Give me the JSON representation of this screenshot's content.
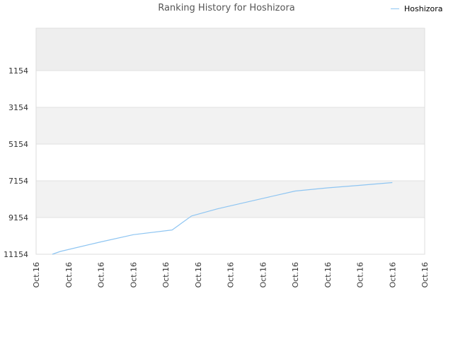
{
  "chart_data": {
    "type": "line",
    "title": "Ranking History for Hoshizora",
    "xlabel": "",
    "ylabel": "",
    "y_reversed": true,
    "ylim": [
      11154,
      0
    ],
    "y_ticks": [
      1154,
      3154,
      5154,
      7154,
      9154,
      11154
    ],
    "x_tick_labels": [
      "Oct.16",
      "Oct.16",
      "Oct.16",
      "Oct.16",
      "Oct.16",
      "Oct.16",
      "Oct.16",
      "Oct.16",
      "Oct.16",
      "Oct.16",
      "Oct.16",
      "Oct.16",
      "Oct.16"
    ],
    "series": [
      {
        "name": "Hoshizora",
        "color": "#8ec5f2",
        "points": [
          {
            "x": 0.5,
            "y": 11154
          },
          {
            "x": 0.75,
            "y": 11000
          },
          {
            "x": 2.0,
            "y": 10480
          },
          {
            "x": 3.0,
            "y": 10090
          },
          {
            "x": 4.2,
            "y": 9830
          },
          {
            "x": 4.8,
            "y": 9070
          },
          {
            "x": 5.6,
            "y": 8680
          },
          {
            "x": 7.0,
            "y": 8110
          },
          {
            "x": 8.0,
            "y": 7710
          },
          {
            "x": 9.0,
            "y": 7540
          },
          {
            "x": 10.0,
            "y": 7400
          },
          {
            "x": 11.0,
            "y": 7250
          }
        ]
      }
    ],
    "grid": true,
    "legend_position": "top-right",
    "colors": {
      "line": "#8ec5f2",
      "band": "#f2f2f2",
      "gridline": "#e0e0e0",
      "axis_text": "#333333"
    }
  }
}
